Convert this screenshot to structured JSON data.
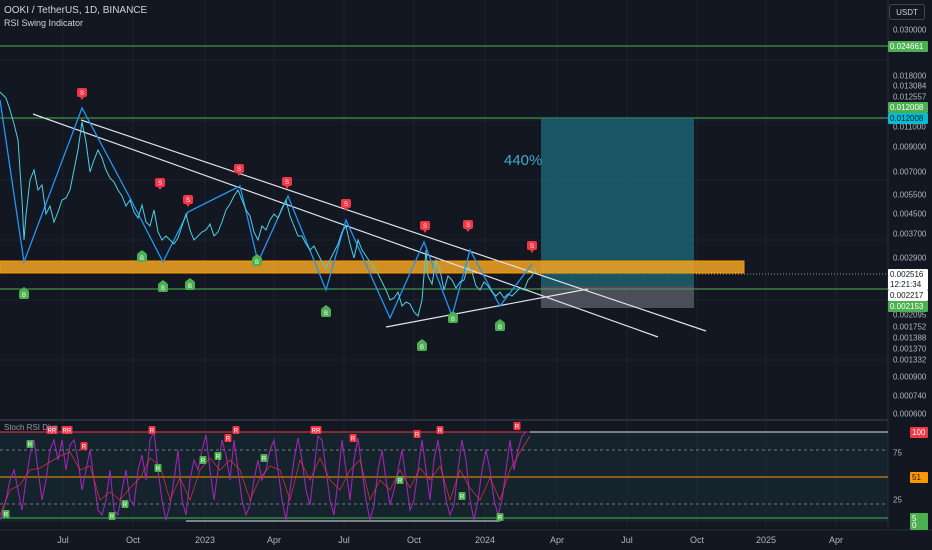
{
  "header": {
    "symbol_line": "OOKI / TetherUS, 1D, BINANCE",
    "indicator_line": "RSI Swing Indicator"
  },
  "currency_button": "USDT",
  "projection_percent": "440%",
  "sub_indicator": "Stoch RSI Divs",
  "y_axis_labels": [
    "0.030000",
    "0.018000",
    "0.013084",
    "0.012557",
    "0.011000",
    "0.009000",
    "0.007000",
    "0.005500",
    "0.004500",
    "0.003700",
    "0.002900",
    "0.002095",
    "0.001752",
    "0.001388",
    "0.001370",
    "0.001332",
    "0.000900",
    "0.000740",
    "0.000600",
    "75",
    "25"
  ],
  "price_tags": [
    {
      "text": "0.024661",
      "bg": "#4caf50",
      "fg": "#ffffff"
    },
    {
      "text": "0.012008",
      "bg": "#4caf50",
      "fg": "#ffffff"
    },
    {
      "text": "0.012008",
      "bg": "#00bcd4",
      "fg": "#131722"
    },
    {
      "text": "0.002516",
      "bg": "#ffffff",
      "fg": "#131722"
    },
    {
      "text": "12:21:34",
      "bg": "#ffffff",
      "fg": "#131722"
    },
    {
      "text": "0.002217",
      "bg": "#ffffff",
      "fg": "#131722"
    },
    {
      "text": "0.002153",
      "bg": "#4caf50",
      "fg": "#ffffff"
    },
    {
      "text": "100",
      "bg": "#f23645",
      "fg": "#ffffff"
    },
    {
      "text": "51",
      "bg": "#ff9800",
      "fg": "#131722"
    },
    {
      "text": "5",
      "bg": "#4caf50",
      "fg": "#ffffff"
    },
    {
      "text": "0",
      "bg": "#4caf50",
      "fg": "#ffffff"
    }
  ],
  "x_axis_labels": [
    "Jul",
    "Oct",
    "2023",
    "Apr",
    "Jul",
    "Oct",
    "2024",
    "Apr",
    "Jul",
    "Oct",
    "2025",
    "Apr"
  ],
  "marker_letters": {
    "buy": "B",
    "sell": "S",
    "rsi": "R",
    "rsi_double": "RR"
  },
  "colors": {
    "background": "#131722",
    "price_line": "#4dd0e1",
    "swing_line": "#2196f3",
    "sell_marker": "#f23645",
    "buy_marker": "#4caf50",
    "support_zone": "#f5a623",
    "projection_box": "#1e6b7a",
    "stoch_line": "#9c27b0"
  }
}
